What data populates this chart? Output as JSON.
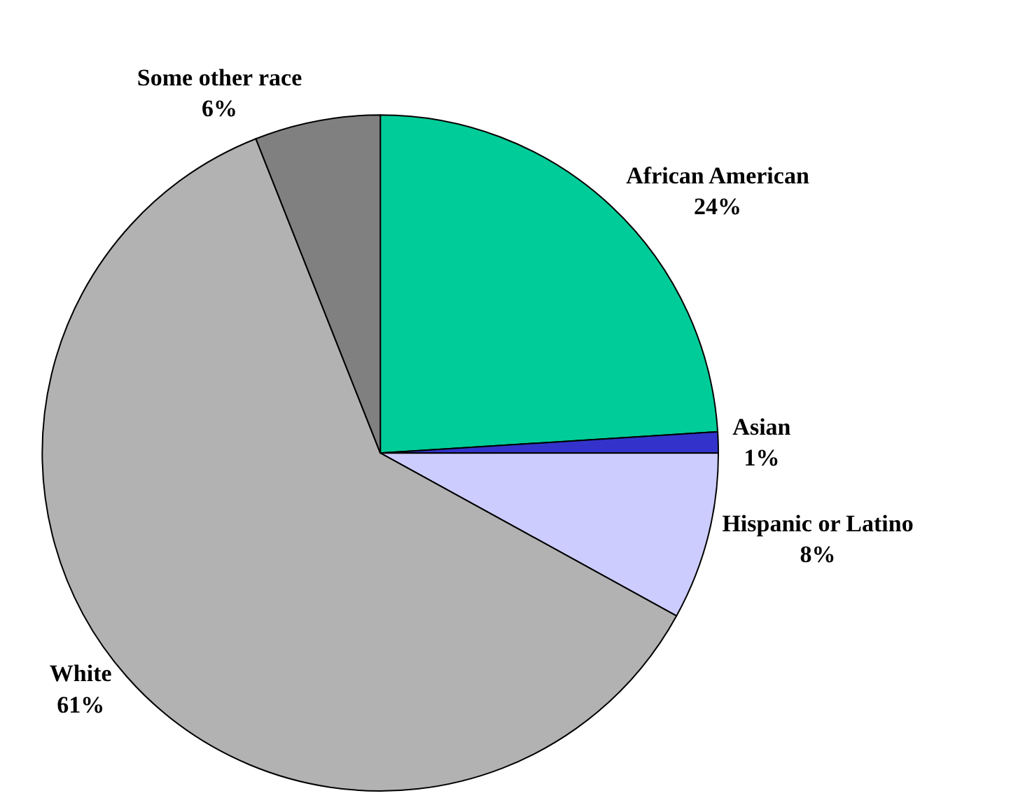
{
  "chart_data": {
    "type": "pie",
    "categories": [
      "African American",
      "Asian",
      "Hispanic or Latino",
      "White",
      "Some other race"
    ],
    "values": [
      24,
      1,
      8,
      61,
      6
    ],
    "value_labels": [
      "24%",
      "1%",
      "8%",
      "61%",
      "6%"
    ],
    "colors": [
      "#00cc99",
      "#3333cc",
      "#ccccff",
      "#b2b2b2",
      "#808080"
    ],
    "legend": false
  }
}
